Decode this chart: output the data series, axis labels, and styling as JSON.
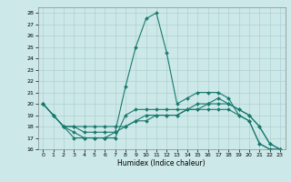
{
  "xlabel": "Humidex (Indice chaleur)",
  "xlim": [
    -0.5,
    23.5
  ],
  "ylim": [
    16,
    28.5
  ],
  "yticks": [
    16,
    17,
    18,
    19,
    20,
    21,
    22,
    23,
    24,
    25,
    26,
    27,
    28
  ],
  "xticks": [
    0,
    1,
    2,
    3,
    4,
    5,
    6,
    7,
    8,
    9,
    10,
    11,
    12,
    13,
    14,
    15,
    16,
    17,
    18,
    19,
    20,
    21,
    22,
    23
  ],
  "bg_color": "#cce8e8",
  "line_color": "#1a7a6e",
  "curves": [
    {
      "x": [
        0,
        1,
        2,
        3,
        4,
        5,
        6,
        7,
        8,
        9,
        10,
        11,
        12,
        13,
        14,
        15,
        16,
        17,
        18,
        19,
        20,
        21,
        22,
        23
      ],
      "y": [
        20,
        19,
        18,
        17,
        17,
        17,
        17,
        17.5,
        21.5,
        25,
        27.5,
        28,
        24.5,
        20,
        20.5,
        21,
        21,
        21,
        20.5,
        19,
        18.5,
        16.5,
        16,
        16
      ]
    },
    {
      "x": [
        0,
        1,
        2,
        3,
        4,
        5,
        6,
        7,
        8,
        9,
        10,
        11,
        12,
        13,
        14,
        15,
        16,
        17,
        18,
        19,
        20,
        21,
        22,
        23
      ],
      "y": [
        20,
        19,
        18,
        17.5,
        17,
        17,
        17,
        17,
        19,
        19.5,
        19.5,
        19.5,
        19.5,
        19.5,
        19.5,
        19.5,
        19.5,
        19.5,
        19.5,
        19,
        18.5,
        16.5,
        16,
        16
      ]
    },
    {
      "x": [
        0,
        1,
        2,
        3,
        4,
        5,
        6,
        7,
        8,
        9,
        10,
        11,
        12,
        13,
        14,
        15,
        16,
        17,
        18,
        19,
        20,
        21,
        22,
        23
      ],
      "y": [
        20,
        19,
        18,
        18,
        17.5,
        17.5,
        17.5,
        17.5,
        18,
        18.5,
        18.5,
        19,
        19,
        19,
        19.5,
        20,
        20,
        20.5,
        20,
        19.5,
        19,
        18,
        16.5,
        16
      ]
    },
    {
      "x": [
        0,
        1,
        2,
        3,
        4,
        5,
        6,
        7,
        8,
        9,
        10,
        11,
        12,
        13,
        14,
        15,
        16,
        17,
        18,
        19,
        20,
        21,
        22,
        23
      ],
      "y": [
        20,
        19,
        18,
        18,
        18,
        18,
        18,
        18,
        18,
        18.5,
        19,
        19,
        19,
        19,
        19.5,
        19.5,
        20,
        20,
        20,
        19.5,
        19,
        18,
        16.5,
        16
      ]
    }
  ]
}
